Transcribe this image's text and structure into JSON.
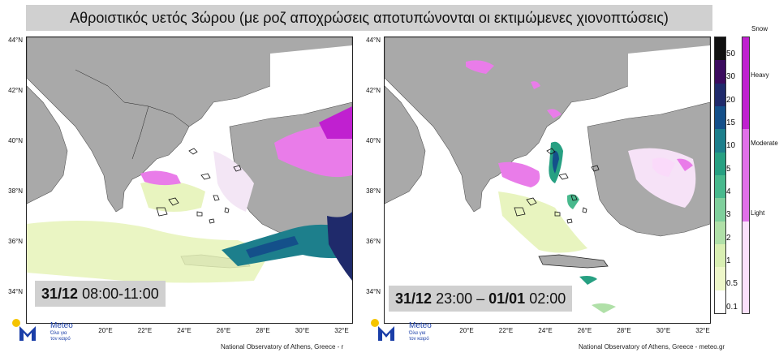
{
  "title": "Αθροιστικός υετός 3ώρου (με ροζ αποχρώσεις αποτυπώνονται οι εκτιμώμενες χιονοπτώσεις)",
  "panels": [
    {
      "time_date": "31/12",
      "time_range": "08:00-11:00",
      "footer": "National Observatory of Athens, Greece - r"
    },
    {
      "time_date": "31/12",
      "time_mid": "23:00 – ",
      "time_date2": "01/01",
      "time_end": "02:00",
      "footer": "National Observatory of Athens, Greece - meteo.gr"
    }
  ],
  "lat_labels": [
    "44°N",
    "42°N",
    "40°N",
    "38°N",
    "36°N",
    "34°N"
  ],
  "lon_labels": [
    "20°E",
    "22°E",
    "24°E",
    "26°E",
    "28°E",
    "30°E",
    "32°E"
  ],
  "precip_scale": {
    "labels": [
      "50",
      "30",
      "20",
      "15",
      "10",
      "5",
      "4",
      "3",
      "2",
      "1",
      "0.5",
      "0.1"
    ],
    "colors": [
      "#111111",
      "#3b0b5e",
      "#1f2a6b",
      "#14508a",
      "#1d7f8c",
      "#27a082",
      "#48b98d",
      "#7fcf9c",
      "#b0e0a8",
      "#d9efb2",
      "#eef7c9",
      "#ffffff"
    ]
  },
  "snow_scale": {
    "title": "Snow",
    "levels": [
      "Heavy",
      "Moderate",
      "Light"
    ],
    "colors": [
      "#c020d0",
      "#e070e8",
      "#fae0fa"
    ]
  },
  "logo": {
    "name": "Meteo",
    "tagline_1": "Όλα για",
    "tagline_2": "τον καιρό",
    "brand_color": "#1a3ea8",
    "sun_color": "#f5c400"
  },
  "colors": {
    "land": "#a9a9a9",
    "sea": "#ffffff",
    "light_precip": "#e6f3b8",
    "snow": "#e97ce9"
  }
}
